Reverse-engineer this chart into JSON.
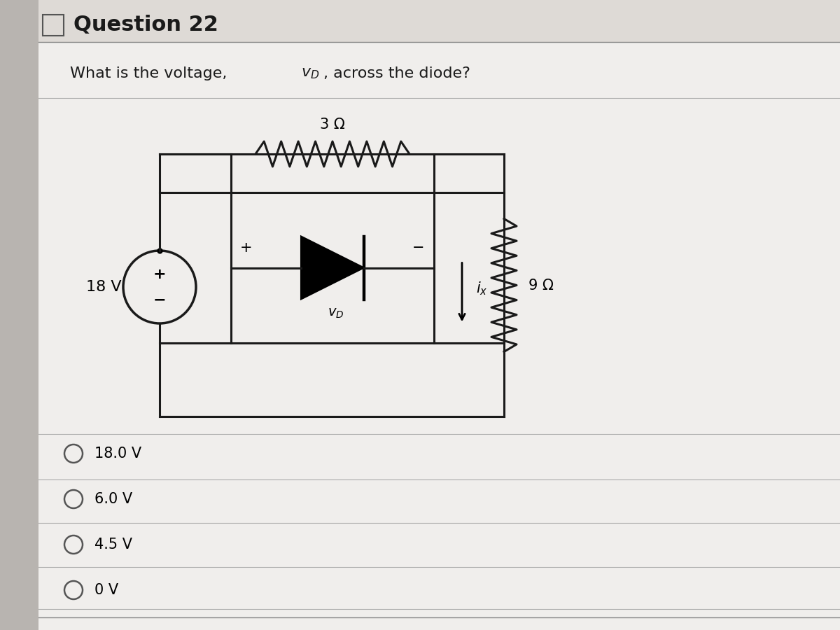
{
  "title": "Question 22",
  "question_parts": [
    "What is the voltage, ",
    "v",
    "D",
    ", across the diode?"
  ],
  "bg_color": "#c8c4c0",
  "panel_bg": "#e8e5e2",
  "white_panel": "#f0eeec",
  "circuit_color": "#1a1a1a",
  "choices": [
    "18.0 V",
    "6.0 V",
    "4.5 V",
    "0 V"
  ],
  "source_voltage": "18 V",
  "resistor1_label": "3 Ω",
  "resistor2_label": "9 Ω",
  "lw": 2.2
}
